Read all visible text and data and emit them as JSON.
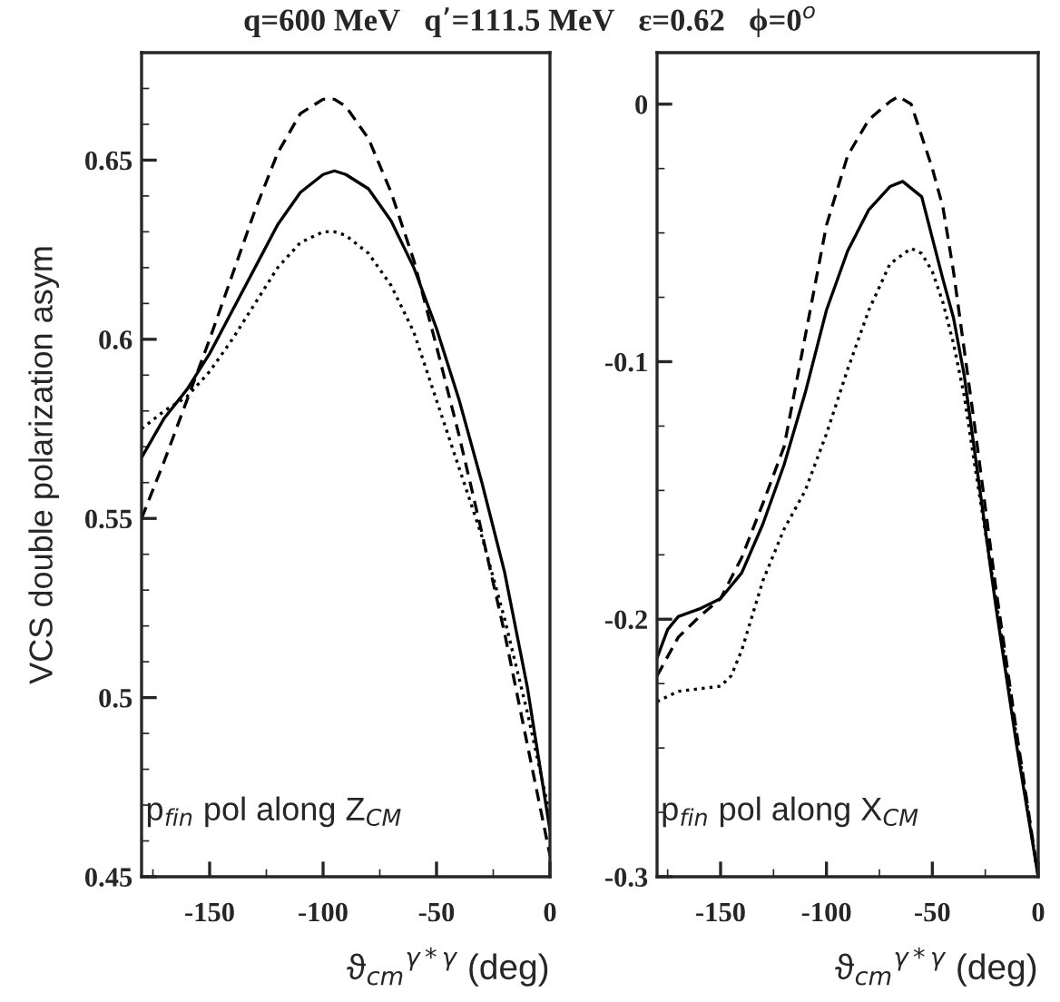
{
  "chart_data": [
    {
      "type": "line",
      "title": "q=600 MeV   q’=111.5 MeV   ε=0.62   ϕ=0$^{o}$",
      "ylabel": "VCS double polarization asym",
      "xlabel": "ϑ$_{cm}$$^{γ*γ}$ (deg)",
      "annotations": [
        "p$_{fin}$ pol along Z$_{CM}$"
      ],
      "xlim": [
        -180,
        0
      ],
      "xticks": [
        -150,
        -100,
        -50,
        0
      ],
      "ylim": [
        0.45,
        0.68
      ],
      "yticks": [
        0.45,
        0.5,
        0.55,
        0.6,
        0.65
      ],
      "grid": false,
      "legend": false,
      "x": [
        -180,
        -170,
        -160,
        -150,
        -140,
        -130,
        -120,
        -110,
        -100,
        -95,
        -90,
        -80,
        -70,
        -60,
        -50,
        -40,
        -30,
        -20,
        -10,
        0
      ],
      "series": [
        {
          "color": "#000000",
          "line_style": "solid",
          "values": [
            0.567,
            0.578,
            0.586,
            0.596,
            0.608,
            0.62,
            0.632,
            0.641,
            0.646,
            0.647,
            0.646,
            0.642,
            0.633,
            0.62,
            0.603,
            0.583,
            0.56,
            0.535,
            0.503,
            0.463
          ]
        },
        {
          "color": "#000000",
          "line_style": "dashed",
          "values": [
            0.55,
            0.566,
            0.583,
            0.6,
            0.618,
            0.636,
            0.652,
            0.663,
            0.667,
            0.667,
            0.665,
            0.656,
            0.641,
            0.622,
            0.598,
            0.573,
            0.546,
            0.518,
            0.487,
            0.456
          ]
        },
        {
          "color": "#000000",
          "line_style": "dotted",
          "values": [
            0.575,
            0.58,
            0.584,
            0.591,
            0.6,
            0.61,
            0.62,
            0.627,
            0.63,
            0.63,
            0.629,
            0.624,
            0.615,
            0.602,
            0.583,
            0.564,
            0.545,
            0.522,
            0.496,
            0.467
          ]
        }
      ]
    },
    {
      "type": "line",
      "xlabel": "ϑ$_{cm}$$^{γ*γ}$ (deg)",
      "annotations": [
        "p$_{fin}$ pol along X$_{CM}$"
      ],
      "xlim": [
        -180,
        0
      ],
      "xticks": [
        -150,
        -100,
        -50,
        0
      ],
      "ylim": [
        -0.3,
        0.02
      ],
      "yticks": [
        -0.3,
        -0.2,
        -0.1,
        0
      ],
      "grid": false,
      "legend": false,
      "series": [
        {
          "color": "#000000",
          "line_style": "solid",
          "x": [
            -180,
            -175,
            -170,
            -160,
            -150,
            -140,
            -130,
            -120,
            -110,
            -100,
            -90,
            -80,
            -70,
            -64,
            -55,
            -50,
            -45,
            -40,
            -35,
            -30,
            -20,
            -10,
            0
          ],
          "values": [
            -0.215,
            -0.204,
            -0.199,
            -0.196,
            -0.192,
            -0.182,
            -0.163,
            -0.14,
            -0.112,
            -0.08,
            -0.057,
            -0.041,
            -0.032,
            -0.03,
            -0.036,
            -0.052,
            -0.068,
            -0.083,
            -0.105,
            -0.135,
            -0.195,
            -0.25,
            -0.3
          ]
        },
        {
          "color": "#000000",
          "line_style": "dashed",
          "x": [
            -180,
            -170,
            -160,
            -150,
            -140,
            -130,
            -120,
            -110,
            -100,
            -90,
            -80,
            -70,
            -66,
            -60,
            -50,
            -45,
            -40,
            -35,
            -30,
            -20,
            -10,
            0
          ],
          "values": [
            -0.222,
            -0.207,
            -0.199,
            -0.192,
            -0.176,
            -0.155,
            -0.133,
            -0.09,
            -0.047,
            -0.02,
            -0.006,
            0.001,
            0.003,
            0.0,
            -0.025,
            -0.04,
            -0.065,
            -0.095,
            -0.125,
            -0.188,
            -0.245,
            -0.3
          ]
        },
        {
          "color": "#000000",
          "line_style": "dotted",
          "x": [
            -180,
            -170,
            -160,
            -150,
            -145,
            -140,
            -130,
            -120,
            -110,
            -100,
            -90,
            -80,
            -70,
            -60,
            -55,
            -50,
            -45,
            -40,
            -35,
            -30,
            -20,
            -10,
            0
          ],
          "values": [
            -0.232,
            -0.228,
            -0.227,
            -0.226,
            -0.222,
            -0.212,
            -0.185,
            -0.165,
            -0.15,
            -0.128,
            -0.103,
            -0.08,
            -0.062,
            -0.056,
            -0.058,
            -0.065,
            -0.077,
            -0.093,
            -0.113,
            -0.14,
            -0.192,
            -0.247,
            -0.3
          ]
        }
      ]
    }
  ]
}
